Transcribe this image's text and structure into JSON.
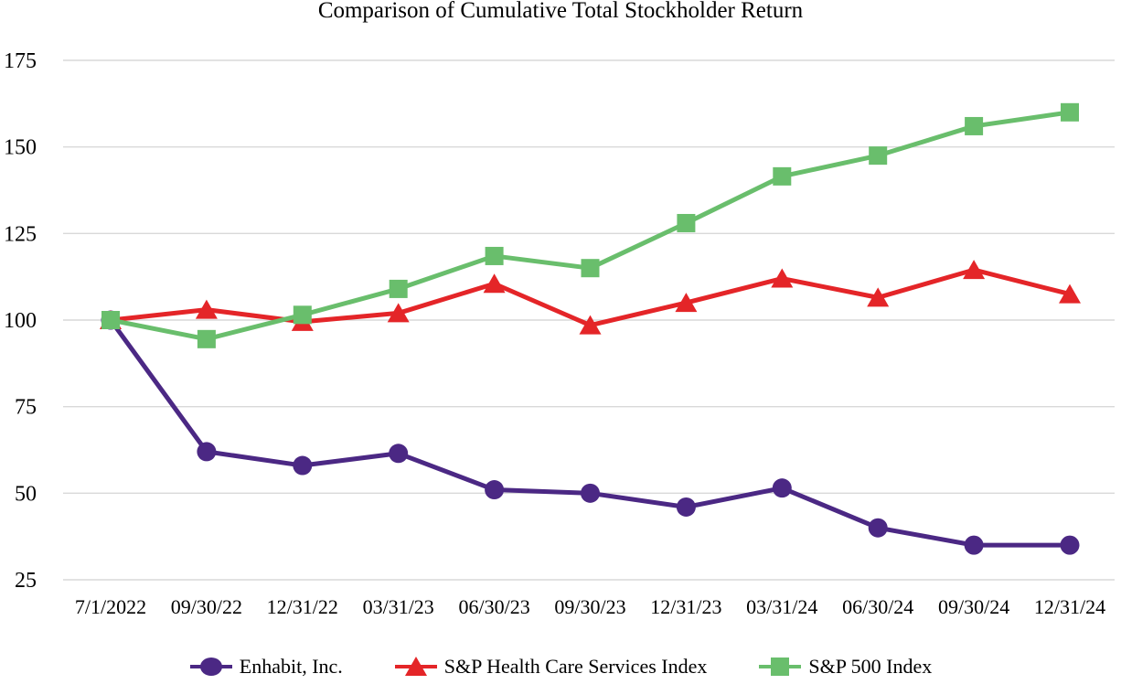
{
  "chart_data": {
    "type": "line",
    "title": "Comparison of Cumulative Total Stockholder Return",
    "categories": [
      "7/1/2022",
      "09/30/22",
      "12/31/22",
      "03/31/23",
      "06/30/23",
      "09/30/23",
      "12/31/23",
      "03/31/24",
      "06/30/24",
      "09/30/24",
      "12/31/24"
    ],
    "series": [
      {
        "name": "Enhabit, Inc.",
        "marker": "circle",
        "color": "#4B2884",
        "values": [
          100,
          62,
          58,
          61.5,
          51,
          50,
          46,
          51.5,
          40,
          35,
          35
        ]
      },
      {
        "name": "S&P Health Care Services Index",
        "marker": "triangle",
        "color": "#E42528",
        "values": [
          100,
          103,
          99.5,
          102,
          110.5,
          98.5,
          105,
          112,
          106.5,
          114.5,
          107.5
        ]
      },
      {
        "name": "S&P 500 Index",
        "marker": "square",
        "color": "#69BE6C",
        "values": [
          100,
          94.5,
          101.5,
          109,
          118.5,
          115,
          128,
          141.5,
          147.5,
          156,
          160
        ]
      }
    ],
    "xlabel": "",
    "ylabel": "",
    "y_ticks": [
      25,
      50,
      75,
      100,
      125,
      150,
      175
    ],
    "ylim": [
      25,
      175
    ],
    "grid": "horizontal-only",
    "gridline_color": "#D9D9D9",
    "legend_position": "bottom"
  }
}
